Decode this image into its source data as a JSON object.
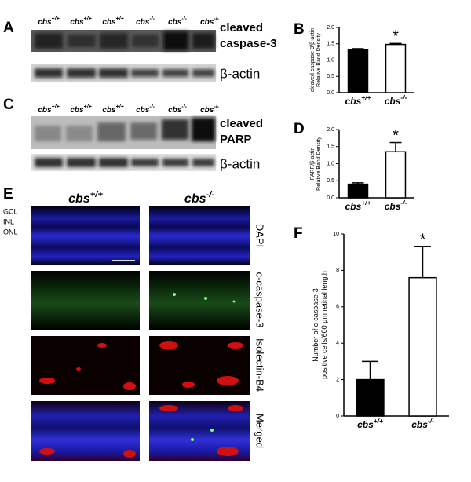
{
  "panel_labels": [
    "A",
    "B",
    "C",
    "D",
    "E",
    "F"
  ],
  "blots": [
    {
      "lanes": [
        "cbs+/+",
        "cbs+/+",
        "cbs+/+",
        "cbs-/-",
        "cbs-/-",
        "cbs-/-"
      ],
      "target": [
        "cleaved",
        "caspase-3"
      ],
      "loading": "β-actin"
    },
    {
      "lanes": [
        "cbs+/+",
        "cbs+/+",
        "cbs+/+",
        "cbs-/-",
        "cbs-/-",
        "cbs-/-"
      ],
      "target": [
        "cleaved",
        "PARP"
      ],
      "loading": "β-actin"
    }
  ],
  "images": {
    "columns": [
      "cbs+/+",
      "cbs-/-"
    ],
    "rows": [
      "DAPI",
      "c-caspase-3",
      "Isolectin-B4",
      "Merged"
    ],
    "layers": [
      "GCL",
      "INL",
      "ONL"
    ]
  },
  "chart_data": [
    {
      "type": "bar",
      "ylabel": [
        "cleaved caspase-3/β-actin",
        "Relative Band Density"
      ],
      "categories": [
        "cbs+/+",
        "cbs-/-"
      ],
      "values": [
        1.33,
        1.48
      ],
      "errors": [
        0.02,
        0.03
      ],
      "colors": [
        "#000000",
        "#ffffff"
      ],
      "annotation": "*",
      "ylim": [
        0,
        2.0
      ],
      "yticks": [
        {
          "value": 0,
          "label": "0.0"
        },
        {
          "value": 0.5,
          "label": "0.5"
        },
        {
          "value": 1.0,
          "label": "1.0"
        },
        {
          "value": 1.5,
          "label": "1.5"
        },
        {
          "value": 2.0,
          "label": "2.0"
        }
      ]
    },
    {
      "type": "bar",
      "ylabel": [
        "PARP/β-actin",
        "Relative Band Density"
      ],
      "categories": [
        "cbs+/+",
        "cbs-/-"
      ],
      "values": [
        0.4,
        1.35
      ],
      "errors": [
        0.04,
        0.27
      ],
      "colors": [
        "#000000",
        "#ffffff"
      ],
      "annotation": "*",
      "ylim": [
        0,
        2.0
      ],
      "yticks": [
        {
          "value": 0,
          "label": "0.0"
        },
        {
          "value": 0.5,
          "label": "0.5"
        },
        {
          "value": 1.0,
          "label": "1.0"
        },
        {
          "value": 1.5,
          "label": "1.5"
        },
        {
          "value": 2.0,
          "label": "2.0"
        }
      ]
    },
    {
      "type": "bar",
      "ylabel": [
        "Number of c-caspase-3",
        "positive cells/600 μm retinal length"
      ],
      "categories": [
        "cbs+/+",
        "cbs-/-"
      ],
      "values": [
        2.0,
        7.6
      ],
      "errors": [
        1.0,
        1.7
      ],
      "colors": [
        "#000000",
        "#ffffff"
      ],
      "annotation": "*",
      "ylim": [
        0,
        10
      ],
      "yticks": [
        0,
        2,
        4,
        6,
        8,
        10
      ]
    }
  ]
}
